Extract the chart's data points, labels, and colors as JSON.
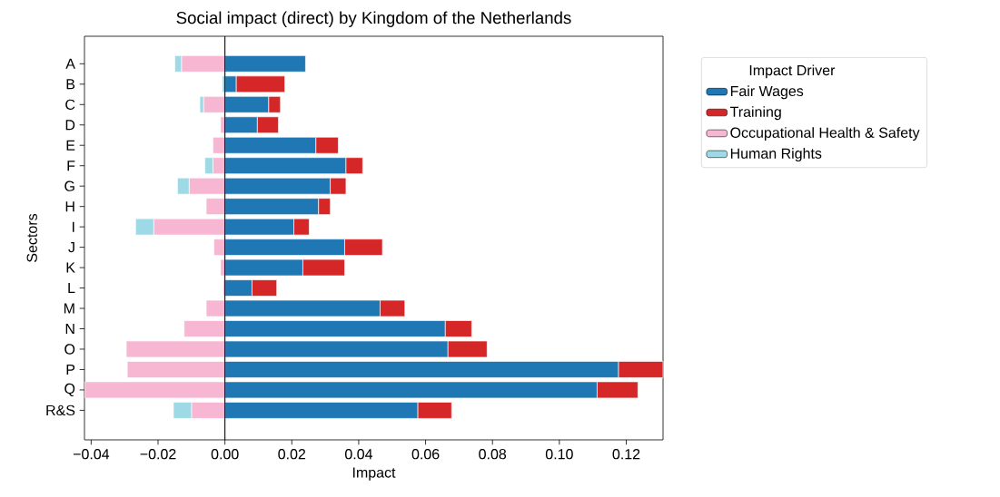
{
  "chart_data": {
    "type": "bar",
    "orientation": "horizontal",
    "stacked": true,
    "title": "Social impact (direct) by Kingdom of the Netherlands",
    "xlabel": "Impact",
    "ylabel": "Sectors",
    "legend_title": "Impact Driver",
    "legend": "top right",
    "categories": [
      "A",
      "B",
      "C",
      "D",
      "E",
      "F",
      "G",
      "H",
      "I",
      "J",
      "K",
      "L",
      "M",
      "N",
      "O",
      "P",
      "Q",
      "R&S"
    ],
    "xlim": [
      -0.042,
      0.131
    ],
    "xticks": [
      {
        "value": -0.04,
        "label": "−0.04"
      },
      {
        "value": -0.02,
        "label": "−0.02"
      },
      {
        "value": 0,
        "label": "0.00"
      },
      {
        "value": 0.02,
        "label": "0.02"
      },
      {
        "value": 0.04,
        "label": "0.04"
      },
      {
        "value": 0.06,
        "label": "0.06"
      },
      {
        "value": 0.08,
        "label": "0.08"
      },
      {
        "value": 0.1,
        "label": "0.10"
      },
      {
        "value": 0.12,
        "label": "0.12"
      }
    ],
    "ref_lines": [
      {
        "axis": "x",
        "value": 0,
        "color": "#000000"
      }
    ],
    "series": [
      {
        "name": "Fair Wages",
        "color": "#1f77b4",
        "values": [
          0.0241,
          0.0034,
          0.0131,
          0.0097,
          0.0272,
          0.0362,
          0.0315,
          0.028,
          0.0206,
          0.0358,
          0.0233,
          0.0081,
          0.0464,
          0.0659,
          0.0667,
          0.1177,
          0.1113,
          0.0577
        ]
      },
      {
        "name": "Training",
        "color": "#d62728",
        "values": [
          0,
          0.0145,
          0.0035,
          0.0063,
          0.0067,
          0.005,
          0.0047,
          0.0035,
          0.0046,
          0.0113,
          0.0125,
          0.0074,
          0.0074,
          0.0079,
          0.0117,
          0.0133,
          0.0122,
          0.0101
        ]
      },
      {
        "name": "Occupational Health & Safety",
        "color": "#f7b6d2",
        "values": [
          -0.013,
          0,
          -0.0064,
          -0.0013,
          -0.0036,
          -0.0036,
          -0.0107,
          -0.0056,
          -0.0213,
          -0.0033,
          -0.0013,
          -0.0005,
          -0.0056,
          -0.0122,
          -0.0295,
          -0.0292,
          -0.0418,
          -0.01
        ]
      },
      {
        "name": "Human Rights",
        "color": "#9edae5",
        "values": [
          -0.002,
          -0.0008,
          -0.0011,
          0,
          0,
          -0.0024,
          -0.0035,
          0,
          -0.0054,
          0,
          0,
          0,
          0,
          0,
          0,
          0,
          0,
          -0.0054
        ]
      }
    ]
  }
}
